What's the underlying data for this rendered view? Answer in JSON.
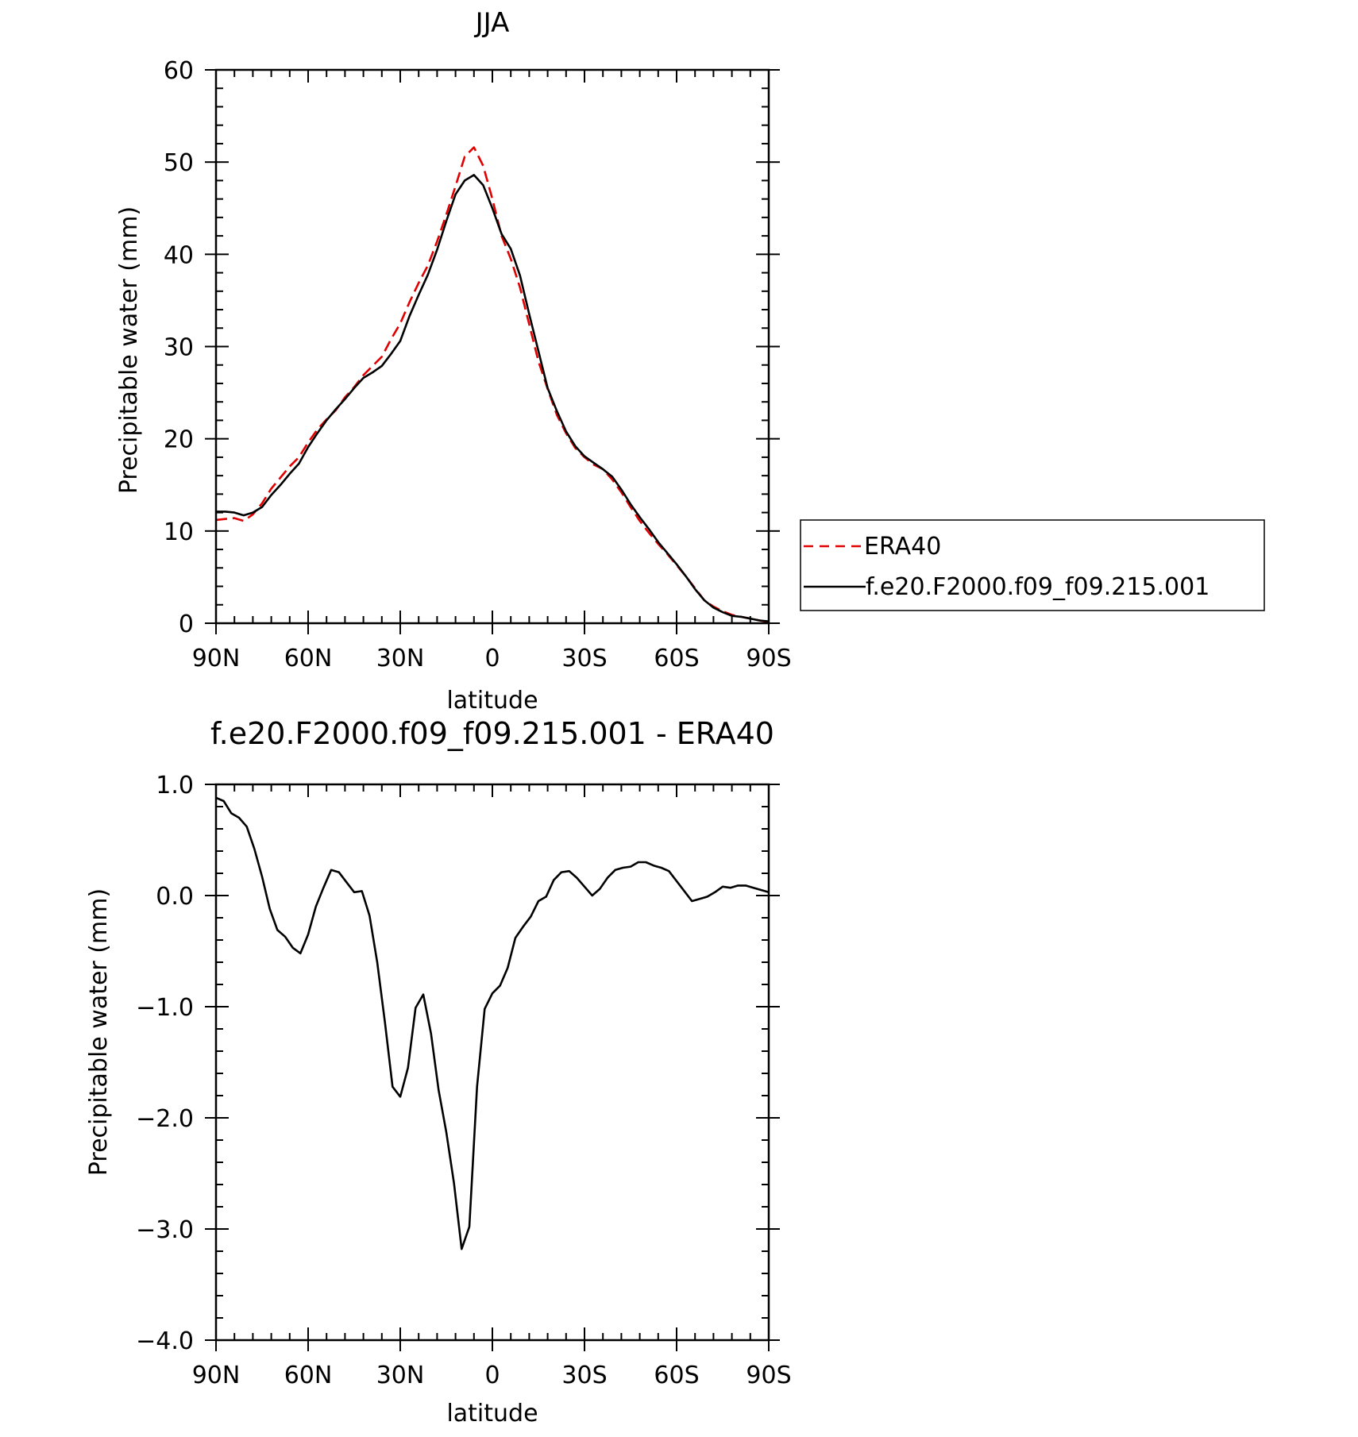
{
  "chart_data": [
    {
      "type": "line",
      "title": "JJA",
      "xlabel": "latitude",
      "ylabel": "Precipitable water (mm)",
      "xlim": [
        90,
        -90
      ],
      "ylim": [
        0,
        60
      ],
      "x_ticks": [
        90,
        60,
        30,
        0,
        -30,
        -60,
        -90
      ],
      "x_tick_labels": [
        "90N",
        "60N",
        "30N",
        "0",
        "30S",
        "60S",
        "90S"
      ],
      "y_ticks": [
        0,
        10,
        20,
        30,
        40,
        50,
        60
      ],
      "y_tick_labels": [
        "0",
        "10",
        "20",
        "30",
        "40",
        "50",
        "60"
      ],
      "grid": false,
      "legend_position": "right",
      "series": [
        {
          "name": "ERA40",
          "color": "#e00000",
          "dash": true,
          "x": [
            90,
            87,
            84,
            81,
            78,
            75,
            72,
            69,
            66,
            63,
            60,
            57,
            54,
            51,
            48,
            45,
            42,
            39,
            36,
            33,
            30,
            27,
            24,
            21,
            18,
            15,
            12,
            9,
            6,
            3,
            0,
            -3,
            -6,
            -9,
            -12,
            -15,
            -18,
            -21,
            -24,
            -27,
            -30,
            -33,
            -36,
            -39,
            -42,
            -45,
            -48,
            -51,
            -54,
            -57,
            -60,
            -63,
            -66,
            -69,
            -72,
            -75,
            -78,
            -81,
            -84,
            -87,
            -90
          ],
          "y": [
            11.2,
            11.3,
            11.4,
            11.1,
            11.8,
            13.0,
            14.6,
            15.8,
            17.0,
            18.0,
            19.6,
            21.0,
            22.1,
            23.1,
            24.5,
            25.6,
            26.9,
            27.9,
            28.9,
            30.8,
            32.5,
            34.8,
            36.9,
            38.8,
            41.4,
            44.3,
            47.4,
            50.6,
            51.6,
            49.6,
            46.0,
            42.0,
            39.5,
            36.4,
            32.4,
            28.4,
            25.4,
            22.6,
            20.6,
            19.0,
            18.0,
            17.2,
            16.7,
            15.6,
            14.2,
            12.6,
            11.1,
            9.8,
            8.6,
            7.5,
            6.3,
            5.1,
            3.8,
            2.5,
            1.8,
            1.3,
            0.9,
            0.7,
            0.5,
            0.3,
            0.1
          ]
        },
        {
          "name": "f.e20.F2000.f09_f09.215.001",
          "color": "#000000",
          "dash": false,
          "x": [
            90,
            87,
            84,
            81,
            78,
            75,
            72,
            69,
            66,
            63,
            60,
            57,
            54,
            51,
            48,
            45,
            42,
            39,
            36,
            33,
            30,
            27,
            24,
            21,
            18,
            15,
            12,
            9,
            6,
            3,
            0,
            -3,
            -6,
            -9,
            -12,
            -15,
            -18,
            -21,
            -24,
            -27,
            -30,
            -33,
            -36,
            -39,
            -42,
            -45,
            -48,
            -51,
            -54,
            -57,
            -60,
            -63,
            -66,
            -69,
            -72,
            -75,
            -78,
            -81,
            -84,
            -87,
            -90
          ],
          "y": [
            12.1,
            12.1,
            12.0,
            11.7,
            12.0,
            12.6,
            13.9,
            15.0,
            16.2,
            17.3,
            19.1,
            20.6,
            22.0,
            23.2,
            24.3,
            25.5,
            26.6,
            27.2,
            27.9,
            29.2,
            30.6,
            33.3,
            35.6,
            37.8,
            40.5,
            43.6,
            46.5,
            48.0,
            48.6,
            47.5,
            45.0,
            42.2,
            40.6,
            37.7,
            33.5,
            29.5,
            25.5,
            23.0,
            20.8,
            19.2,
            18.1,
            17.4,
            16.7,
            15.9,
            14.5,
            12.9,
            11.5,
            10.2,
            8.8,
            7.6,
            6.4,
            5.1,
            3.7,
            2.5,
            1.7,
            1.2,
            0.8,
            0.7,
            0.5,
            0.3,
            0.2
          ]
        }
      ]
    },
    {
      "type": "line",
      "title": "f.e20.F2000.f09_f09.215.001 - ERA40",
      "xlabel": "latitude",
      "ylabel": "Precipitable water (mm)",
      "xlim": [
        90,
        -90
      ],
      "ylim": [
        -4.0,
        1.0
      ],
      "x_ticks": [
        90,
        60,
        30,
        0,
        -30,
        -60,
        -90
      ],
      "x_tick_labels": [
        "90N",
        "60N",
        "30N",
        "0",
        "30S",
        "60S",
        "90S"
      ],
      "y_ticks": [
        -4.0,
        -3.0,
        -2.0,
        -1.0,
        0.0,
        1.0
      ],
      "y_tick_labels": [
        "−4.0",
        "−3.0",
        "−2.0",
        "−1.0",
        "0.0",
        "1.0"
      ],
      "grid": false,
      "series": [
        {
          "color": "#000000",
          "dash": false,
          "x": [
            90,
            87.5,
            85,
            82.5,
            80,
            77.5,
            75,
            72.5,
            70,
            67.5,
            65,
            62.5,
            60,
            57.5,
            55,
            52.5,
            50,
            47.5,
            45,
            42.5,
            40,
            37.5,
            35,
            32.5,
            30,
            27.5,
            25,
            22.5,
            20,
            17.5,
            15,
            12.5,
            10,
            7.5,
            5,
            2.5,
            0,
            -2.5,
            -5,
            -7.5,
            -10,
            -12.5,
            -15,
            -17.5,
            -20,
            -22.5,
            -25,
            -27.5,
            -30,
            -32.5,
            -35,
            -37.5,
            -40,
            -42.5,
            -45,
            -47.5,
            -50,
            -52.5,
            -55,
            -57.5,
            -60,
            -62.5,
            -65,
            -67.5,
            -70,
            -72.5,
            -75,
            -77.5,
            -80,
            -82.5,
            -85,
            -87.5,
            -90
          ],
          "y": [
            0.88,
            0.85,
            0.74,
            0.7,
            0.62,
            0.42,
            0.17,
            -0.12,
            -0.31,
            -0.37,
            -0.47,
            -0.52,
            -0.35,
            -0.1,
            0.07,
            0.23,
            0.21,
            0.12,
            0.03,
            0.04,
            -0.18,
            -0.6,
            -1.14,
            -1.72,
            -1.81,
            -1.55,
            -1.01,
            -0.89,
            -1.24,
            -1.75,
            -2.13,
            -2.59,
            -3.18,
            -2.98,
            -1.72,
            -1.02,
            -0.88,
            -0.81,
            -0.65,
            -0.38,
            -0.28,
            -0.19,
            -0.05,
            -0.01,
            0.14,
            0.21,
            0.22,
            0.16,
            0.08,
            0.0,
            0.06,
            0.16,
            0.23,
            0.25,
            0.26,
            0.3,
            0.3,
            0.27,
            0.25,
            0.22,
            0.13,
            0.04,
            -0.05,
            -0.03,
            -0.01,
            0.03,
            0.08,
            0.07,
            0.09,
            0.09,
            0.07,
            0.05,
            0.03
          ]
        }
      ]
    }
  ]
}
